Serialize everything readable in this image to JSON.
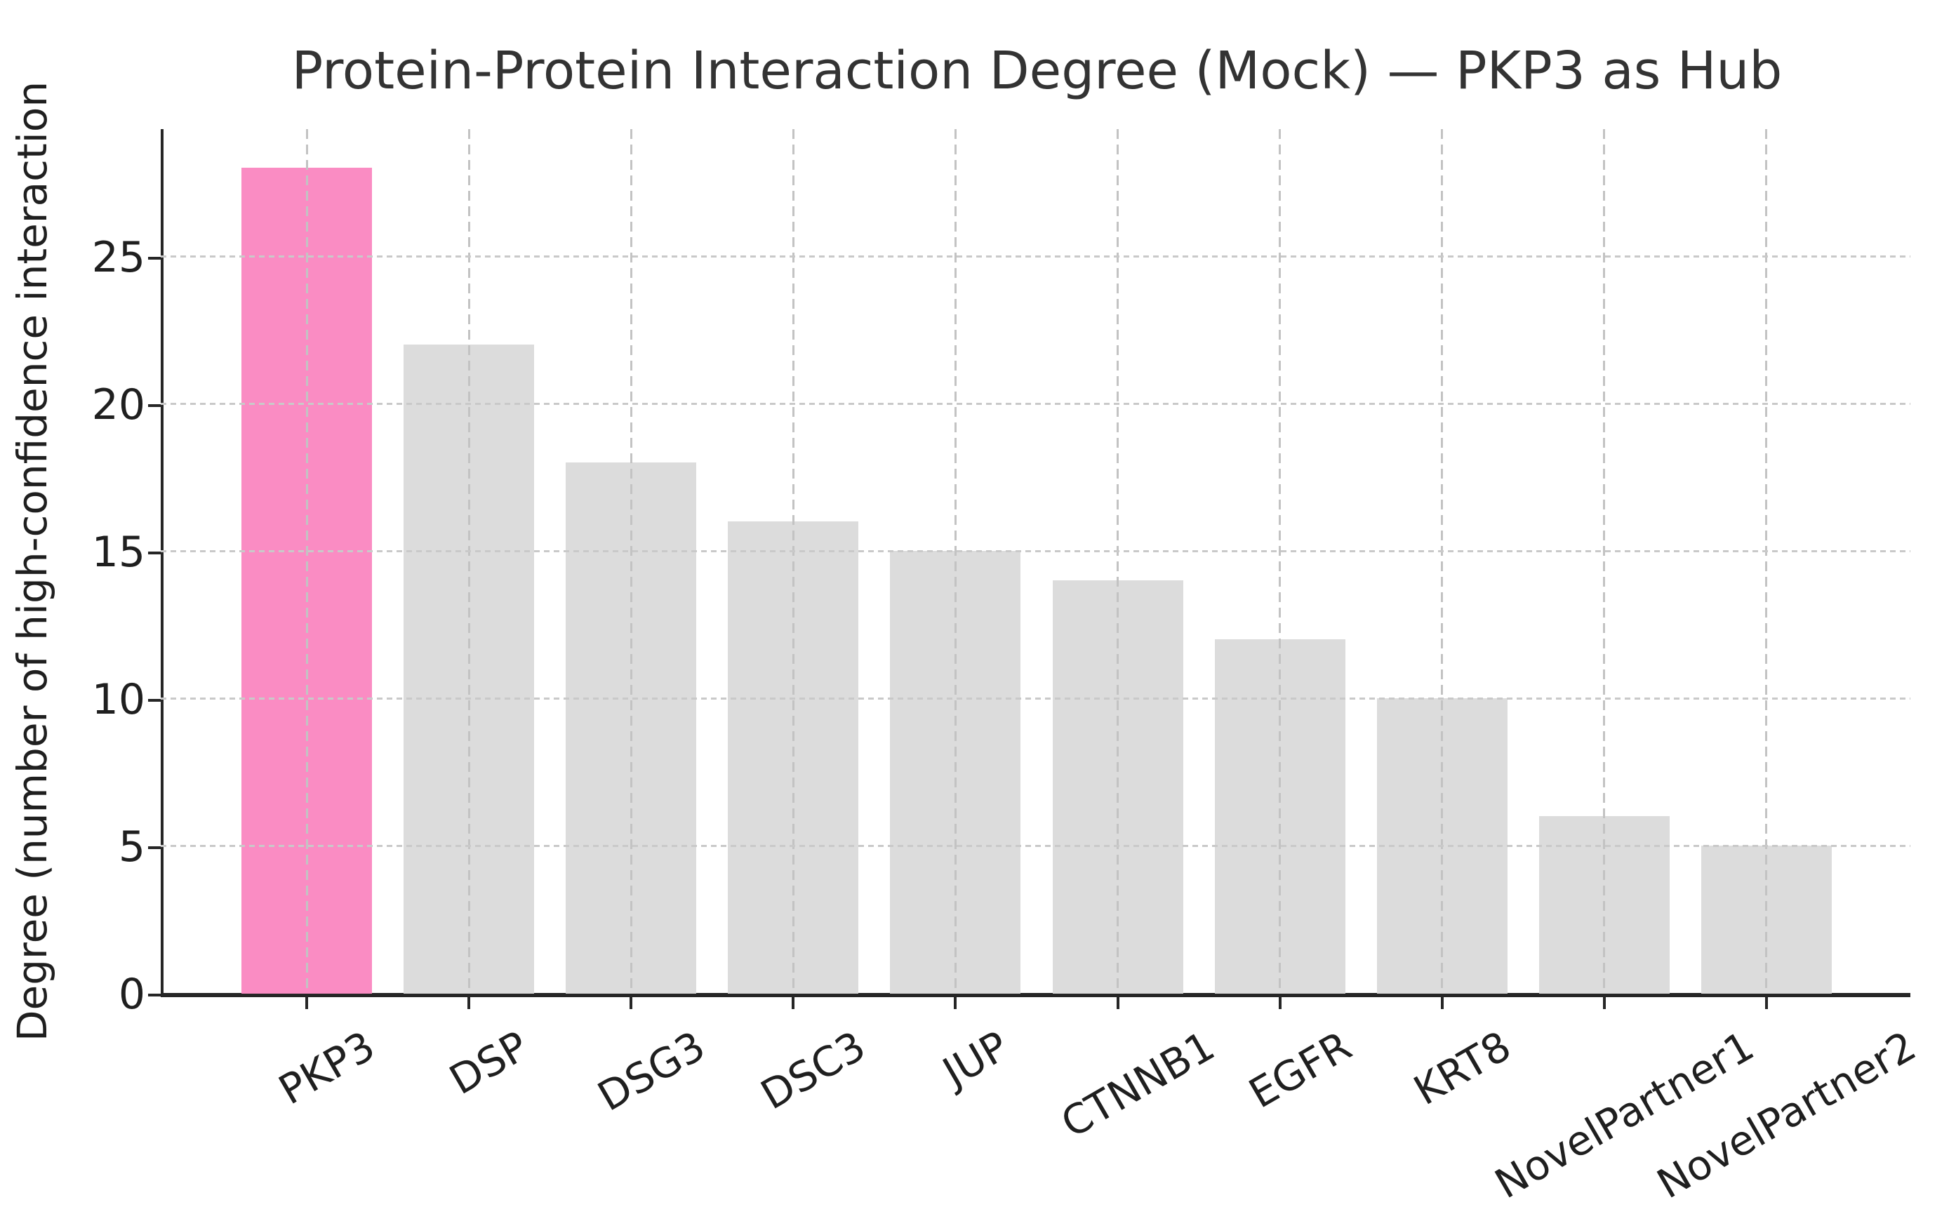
{
  "figure": {
    "title": "Protein-Protein Interaction Degree (Mock) — PKP3 as Hub",
    "background_color": "#ffffff"
  },
  "chart_data": {
    "type": "bar",
    "title": "Protein-Protein Interaction Degree (Mock) — PKP3 as Hub",
    "xlabel": "",
    "ylabel": "Degree (number of high-confidence interaction",
    "ylabel_note": "text clipped at left figure edge (closing parenthesis not visible)",
    "categories": [
      "PKP3",
      "DSP",
      "DSG3",
      "DSC3",
      "JUP",
      "CTNNB1",
      "EGFR",
      "KRT8",
      "NovelPartner1",
      "NovelPartner2"
    ],
    "values": [
      28,
      22,
      18,
      16,
      15,
      14,
      12,
      10,
      6,
      5
    ],
    "highlight_category": "PKP3",
    "yticks": [
      0,
      5,
      10,
      15,
      20,
      25
    ],
    "ylim": [
      0,
      29.4
    ],
    "grid": true,
    "grid_lines": "dashed, both vertical (at each bar) and horizontal (at each ytick), drawn above bars",
    "legend_position": "none",
    "xtick_rotation_deg": 30,
    "colors": {
      "highlight_bar": "#fa8cc3",
      "default_bar": "#dcdcdc",
      "gridline": "#c6c6c6",
      "spine": "#262626",
      "text": "#1f1f1f",
      "title_text": "#333333"
    }
  }
}
